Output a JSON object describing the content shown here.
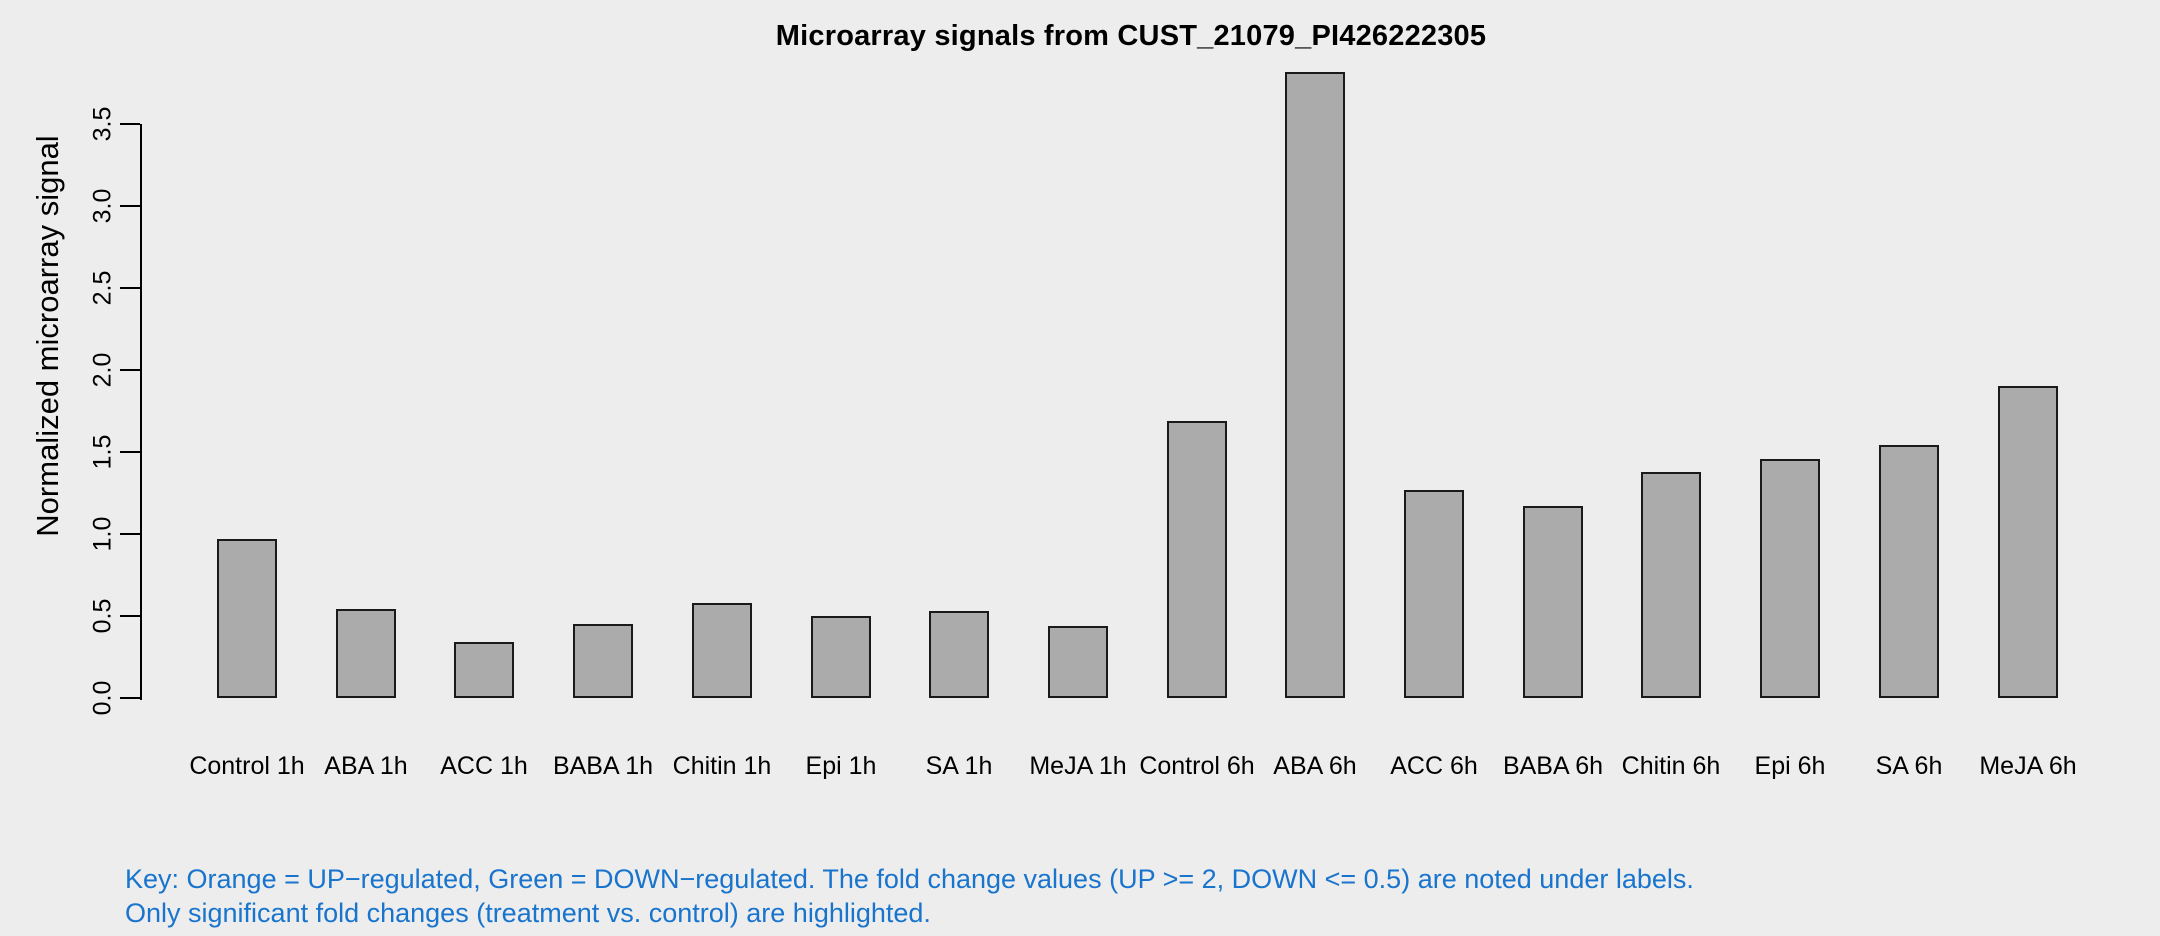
{
  "chart_data": {
    "type": "bar",
    "title": "Microarray signals from CUST_21079_PI426222305",
    "ylabel": "Normalized microarray signal",
    "xlabel": "",
    "categories": [
      "Control 1h",
      "ABA 1h",
      "ACC 1h",
      "BABA 1h",
      "Chitin 1h",
      "Epi 1h",
      "SA 1h",
      "MeJA 1h",
      "Control 6h",
      "ABA 6h",
      "ACC 6h",
      "BABA 6h",
      "Chitin 6h",
      "Epi 6h",
      "SA 6h",
      "MeJA 6h"
    ],
    "values": [
      0.97,
      0.54,
      0.34,
      0.45,
      0.58,
      0.5,
      0.53,
      0.44,
      1.69,
      3.82,
      1.27,
      1.17,
      1.38,
      1.46,
      1.54,
      1.9
    ],
    "ytick_labels": [
      "0.0",
      "0.5",
      "1.0",
      "1.5",
      "2.0",
      "2.5",
      "3.0",
      "3.5"
    ],
    "yticks": [
      0.0,
      0.5,
      1.0,
      1.5,
      2.0,
      2.5,
      3.0,
      3.5
    ],
    "ylim": [
      0,
      3.9
    ],
    "grid": false,
    "legend": "none",
    "bar_fill": "#ABABAB",
    "bar_border": "#1a1a1a"
  },
  "footer": {
    "line1": "Key: Orange = UP−regulated, Green = DOWN−regulated. The fold change values (UP >= 2, DOWN <= 0.5) are noted under labels.",
    "line2": "Only significant fold changes (treatment vs. control) are highlighted.",
    "color": "#1874CD"
  },
  "colors": {
    "background": "#EDEDED",
    "axis": "#000000",
    "text": "#000000"
  }
}
